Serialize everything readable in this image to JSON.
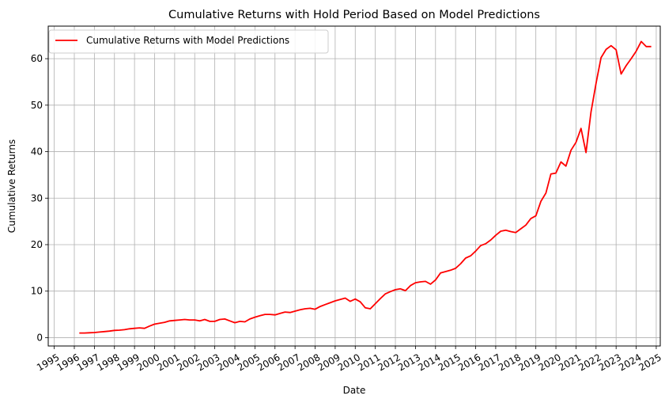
{
  "chart_data": {
    "type": "line",
    "title": "Cumulative Returns with Hold Period Based on Model Predictions",
    "xlabel": "Date",
    "ylabel": "Cumulative Returns",
    "xlim": [
      1994.7,
      2025.2
    ],
    "ylim": [
      -1.8,
      67
    ],
    "x_ticks": [
      "1995",
      "1996",
      "1997",
      "1998",
      "1999",
      "2000",
      "2001",
      "2002",
      "2003",
      "2004",
      "2005",
      "2006",
      "2007",
      "2008",
      "2009",
      "2010",
      "2011",
      "2012",
      "2013",
      "2014",
      "2015",
      "2016",
      "2017",
      "2018",
      "2019",
      "2020",
      "2021",
      "2022",
      "2023",
      "2024",
      "2025"
    ],
    "y_ticks": [
      0,
      10,
      20,
      30,
      40,
      50,
      60
    ],
    "grid": true,
    "legend_position": "upper-left",
    "series": [
      {
        "name": "Cumulative Returns with Model Predictions",
        "color": "#ff0000",
        "x": [
          1996.25,
          1996.5,
          1996.75,
          1997.0,
          1997.25,
          1997.5,
          1997.75,
          1998.0,
          1998.25,
          1998.5,
          1998.75,
          1999.0,
          1999.25,
          1999.5,
          1999.75,
          2000.0,
          2000.25,
          2000.5,
          2000.75,
          2001.0,
          2001.25,
          2001.5,
          2001.75,
          2002.0,
          2002.25,
          2002.5,
          2002.75,
          2003.0,
          2003.25,
          2003.5,
          2003.75,
          2004.0,
          2004.25,
          2004.5,
          2004.75,
          2005.0,
          2005.25,
          2005.5,
          2005.75,
          2006.0,
          2006.25,
          2006.5,
          2006.75,
          2007.0,
          2007.25,
          2007.5,
          2007.75,
          2008.0,
          2008.25,
          2008.5,
          2008.75,
          2009.0,
          2009.25,
          2009.5,
          2009.75,
          2010.0,
          2010.25,
          2010.5,
          2010.75,
          2011.0,
          2011.25,
          2011.5,
          2011.75,
          2012.0,
          2012.25,
          2012.5,
          2012.75,
          2013.0,
          2013.25,
          2013.5,
          2013.75,
          2014.0,
          2014.25,
          2014.5,
          2014.75,
          2015.0,
          2015.25,
          2015.5,
          2015.75,
          2016.0,
          2016.25,
          2016.5,
          2016.75,
          2017.0,
          2017.25,
          2017.5,
          2017.75,
          2018.0,
          2018.25,
          2018.5,
          2018.75,
          2019.0,
          2019.25,
          2019.5,
          2019.75,
          2020.0,
          2020.25,
          2020.5,
          2020.75,
          2021.0,
          2021.25,
          2021.5,
          2021.75,
          2022.0,
          2022.25,
          2022.5,
          2022.75,
          2023.0,
          2023.25,
          2023.5,
          2023.75,
          2024.0,
          2024.25,
          2024.5,
          2024.75
        ],
        "y": [
          1.0,
          1.0,
          1.05,
          1.1,
          1.2,
          1.3,
          1.4,
          1.55,
          1.6,
          1.7,
          1.9,
          2.0,
          2.1,
          2.0,
          2.5,
          2.9,
          3.1,
          3.3,
          3.6,
          3.7,
          3.8,
          3.9,
          3.8,
          3.8,
          3.6,
          3.9,
          3.5,
          3.5,
          3.9,
          4.0,
          3.6,
          3.2,
          3.5,
          3.4,
          4.0,
          4.4,
          4.7,
          5.0,
          5.0,
          4.9,
          5.2,
          5.5,
          5.4,
          5.7,
          6.0,
          6.2,
          6.3,
          6.1,
          6.7,
          7.1,
          7.5,
          7.9,
          8.2,
          8.5,
          7.8,
          8.3,
          7.7,
          6.4,
          6.2,
          7.3,
          8.4,
          9.4,
          9.9,
          10.3,
          10.5,
          10.1,
          11.2,
          11.8,
          12.0,
          12.1,
          11.5,
          12.4,
          13.9,
          14.2,
          14.5,
          14.9,
          15.9,
          17.1,
          17.6,
          18.6,
          19.8,
          20.2,
          21.0,
          22.0,
          22.9,
          23.1,
          22.8,
          22.6,
          23.4,
          24.2,
          25.6,
          26.2,
          29.3,
          31.1,
          35.2,
          35.4,
          37.8,
          36.9,
          40.3,
          42.0,
          45.0,
          39.8,
          48.5,
          54.7,
          60.2,
          62.0,
          62.8,
          61.9,
          56.7,
          58.5,
          60.0,
          61.6,
          63.7,
          62.6,
          62.6
        ]
      }
    ]
  }
}
